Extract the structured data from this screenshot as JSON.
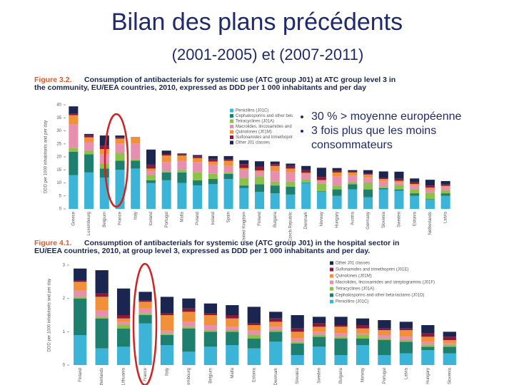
{
  "title": "Bilan des plans précédents",
  "subtitle": "(2001-2005) et (2007-2011)",
  "bullets": [
    "30 % > moyenne européenne",
    "3 fois plus que les moins consommateurs"
  ],
  "chart_data": [
    {
      "type": "bar",
      "stacked": true,
      "figure": "Figure 3.2.",
      "title_lines": [
        "Consumption of antibacterials for systemic use (ATC group J01) at ATC group level 3 in",
        "the community, EU/EEA countries, 2010, expressed as DDD per 1 000 inhabitants and per day"
      ],
      "ylabel": "DDD per 1000 inhabitants and per day",
      "ylim": [
        0,
        40
      ],
      "yticks": [
        0,
        5,
        10,
        15,
        20,
        25,
        30,
        35,
        40
      ],
      "categories": [
        "Greece",
        "Luxembourg",
        "Belgium",
        "France",
        "Italy",
        "Iceland",
        "Portugal",
        "Malta",
        "Poland",
        "Ireland",
        "Spain",
        "United Kingdom",
        "Finland",
        "Bulgaria",
        "Czech Republic",
        "Denmark",
        "Norway",
        "Hungary",
        "Austria",
        "Germany",
        "Slovenia",
        "Sweden",
        "Estonia",
        "Netherlands",
        "Latvia"
      ],
      "series": [
        {
          "name": "Penicillins (J01C)",
          "color": "#3bb4d8",
          "values": [
            13,
            14,
            12,
            15,
            15.5,
            10,
            11,
            10,
            9,
            9.5,
            11.5,
            8,
            6.5,
            6,
            5.5,
            10,
            6.5,
            5,
            7.5,
            4.5,
            7.5,
            7,
            5,
            3.5,
            5
          ]
        },
        {
          "name": "Cephalosporins and other beta-lactams (J01D)",
          "color": "#1e7f6e",
          "values": [
            9,
            7,
            3.5,
            3.5,
            3,
            1,
            3,
            4,
            2,
            2,
            2,
            1,
            3,
            3,
            3,
            0.2,
            0.3,
            2.5,
            2,
            3,
            0.5,
            0.5,
            1,
            0.2,
            1
          ]
        },
        {
          "name": "Tetracyclines (J01A)",
          "color": "#8cc24a",
          "values": [
            1.5,
            1.5,
            2,
            3,
            0.5,
            2,
            0.5,
            1,
            3,
            2,
            0.5,
            3,
            3,
            1.5,
            2,
            1.2,
            3,
            1.5,
            0.8,
            2.5,
            0.5,
            1.8,
            1.5,
            2.5,
            1.2
          ]
        },
        {
          "name": "Macrolides, lincosamides and streptogramins (J01F)",
          "color": "#e88fb0",
          "values": [
            9,
            3,
            3.5,
            3.5,
            6,
            1.5,
            3.5,
            3.5,
            4,
            3.5,
            2.5,
            3,
            1.5,
            4,
            3.5,
            2,
            1,
            3.5,
            2.5,
            2,
            2,
            0.8,
            1.5,
            1.2,
            1.2
          ]
        },
        {
          "name": "Quinolones (J01M)",
          "color": "#f0913a",
          "values": [
            3.5,
            2,
            2,
            2,
            2.5,
            1,
            2.5,
            2,
            1.5,
            1.2,
            2,
            0.7,
            0.8,
            2,
            1.5,
            0.5,
            0.3,
            1.5,
            1.2,
            1.2,
            1,
            0.7,
            0.6,
            0.8,
            0.5
          ]
        },
        {
          "name": "Sulfonamides and trimethoprim (J01E)",
          "color": "#8b1a3a",
          "values": [
            0.5,
            0.8,
            1.2,
            0.5,
            0.1,
            1.5,
            0.6,
            0.5,
            0.7,
            1,
            0.5,
            1.5,
            1.5,
            0.7,
            1,
            1,
            1.2,
            0.6,
            0.4,
            0.5,
            0.4,
            0.8,
            0.6,
            0.8,
            0.5
          ]
        },
        {
          "name": "Other J01 classes",
          "color": "#1a2550",
          "values": [
            2.9,
            0.5,
            4,
            0.7,
            0,
            5.8,
            1.3,
            0.3,
            0.5,
            1.1,
            1.3,
            1.5,
            2,
            1,
            0.9,
            1.6,
            3.5,
            1.1,
            0.5,
            1.2,
            2.5,
            2.7,
            1.5,
            2.2,
            1.3
          ]
        }
      ]
    },
    {
      "type": "bar",
      "stacked": true,
      "figure": "Figure 4.1.",
      "title_lines": [
        "Consumption of antibacterials for systemic use (ATC group J01) in the hospital sector in",
        "EU/EEA countries, 2010, at group level 3, expressed as DDD per 1 000 inhabitants and per day."
      ],
      "ylabel": "DDD per 1000 inhabitants and per day",
      "ylim": [
        0,
        3
      ],
      "yticks": [
        0,
        1,
        2,
        3
      ],
      "categories": [
        "Finland",
        "Netherlands",
        "Lithuania",
        "France",
        "Italy",
        "Luxembourg",
        "Belgium",
        "Malta",
        "Estonia",
        "Denmark",
        "Slovakia",
        "Sweden",
        "Bulgaria",
        "Norway",
        "Portugal",
        "Latvia",
        "Hungary",
        "Slovenia"
      ],
      "series": [
        {
          "name": "Penicillins (J01C)",
          "color": "#3bb4d8",
          "values": [
            0.9,
            0.5,
            0.55,
            1.25,
            0.6,
            0.4,
            0.55,
            0.6,
            0.5,
            0.7,
            0.3,
            0.55,
            0.3,
            0.6,
            0.3,
            0.35,
            0.45,
            0.35
          ]
        },
        {
          "name": "Cephalosporins and other beta-lactams (J01D)",
          "color": "#1e7f6e",
          "values": [
            1.1,
            0.9,
            0.55,
            0.25,
            0.3,
            0.7,
            0.45,
            0.4,
            0.3,
            0.3,
            0.35,
            0.3,
            0.5,
            0.2,
            0.45,
            0.35,
            0.1,
            0.2
          ]
        },
        {
          "name": "Tetracyclines (J01A)",
          "color": "#8cc24a",
          "values": [
            0.05,
            0.05,
            0.1,
            0.05,
            0.05,
            0.05,
            0.05,
            0.05,
            0.1,
            0.05,
            0.05,
            0.05,
            0.05,
            0.1,
            0.05,
            0.05,
            0.05,
            0.05
          ]
        },
        {
          "name": "Macrolides, lincosamides and streptogramins (J01F)",
          "color": "#e88fb0",
          "values": [
            0.2,
            0.2,
            0.1,
            0.15,
            0.1,
            0.15,
            0.15,
            0.1,
            0.15,
            0.1,
            0.1,
            0.1,
            0.1,
            0.05,
            0.1,
            0.1,
            0.1,
            0.05
          ]
        },
        {
          "name": "Quinolones (J01M)",
          "color": "#f0913a",
          "values": [
            0.25,
            0.4,
            0.1,
            0.2,
            0.45,
            0.3,
            0.3,
            0.25,
            0.15,
            0.15,
            0.2,
            0.15,
            0.2,
            0.15,
            0.15,
            0.2,
            0.15,
            0.1
          ]
        },
        {
          "name": "Sulfonamides and trimethoprim (J01E)",
          "color": "#8b1a3a",
          "values": [
            0.05,
            0.1,
            0.1,
            0.05,
            0.05,
            0.1,
            0.05,
            0.1,
            0.05,
            0.1,
            0.1,
            0.1,
            0.05,
            0.1,
            0.05,
            0.05,
            0.1,
            0.1
          ]
        },
        {
          "name": "Other J01 classes",
          "color": "#1a2550",
          "values": [
            0.35,
            0.7,
            0.8,
            0.25,
            0.5,
            0.3,
            0.3,
            0.3,
            0.5,
            0.2,
            0.4,
            0.2,
            0.25,
            0.2,
            0.25,
            0.2,
            0.25,
            0.15
          ]
        }
      ]
    }
  ]
}
